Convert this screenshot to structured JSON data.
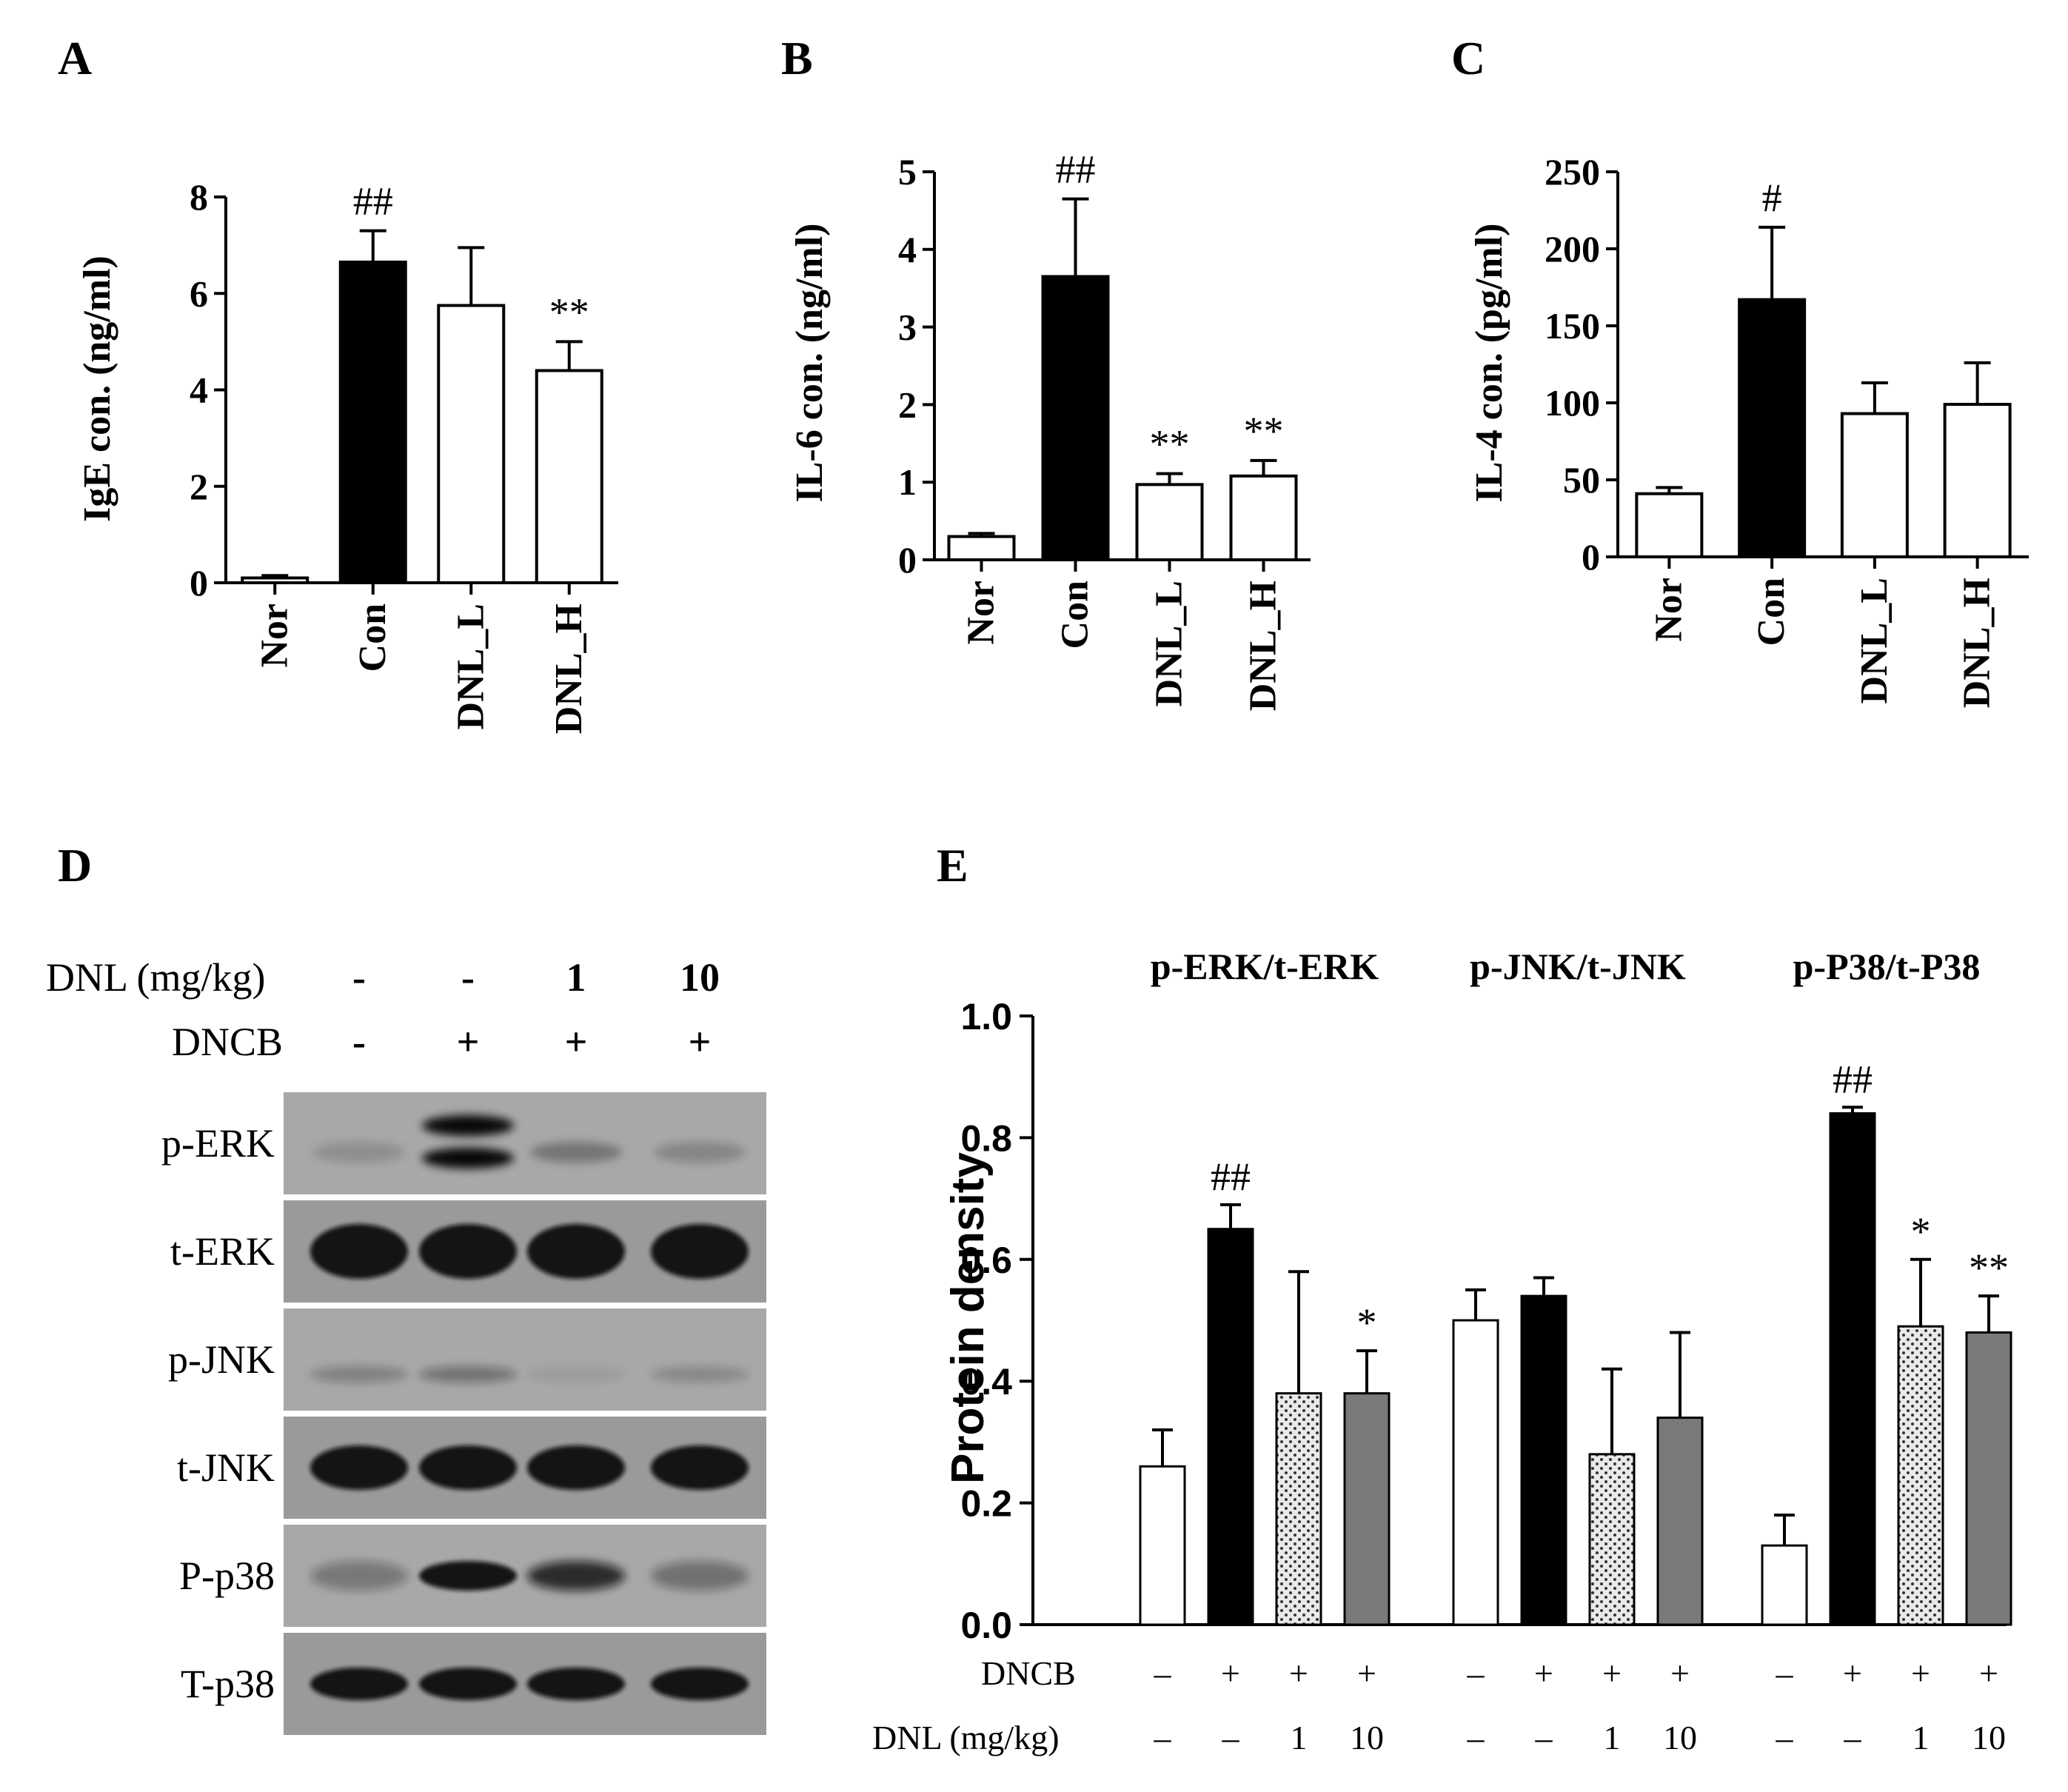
{
  "colors": {
    "black": "#000000",
    "white": "#ffffff",
    "gray": "#7a7a7a",
    "dotted": "#e6e6e6"
  },
  "panels": {
    "A": "A",
    "B": "B",
    "C": "C",
    "D": "D",
    "E": "E"
  },
  "chart_data": [
    {
      "panel": "A",
      "type": "bar",
      "ylabel": "IgE con. (ng/ml)",
      "categories": [
        "Nor",
        "Con",
        "DNL_L",
        "DNL_H"
      ],
      "values": [
        0.1,
        6.65,
        5.75,
        4.4
      ],
      "errors": [
        0.05,
        0.65,
        1.2,
        0.6
      ],
      "fills": [
        "white",
        "black",
        "white",
        "white"
      ],
      "sig": [
        "",
        "##",
        "",
        "**"
      ],
      "ylim": [
        0,
        8
      ],
      "yticks": [
        "0",
        "2",
        "4",
        "6",
        "8"
      ]
    },
    {
      "panel": "B",
      "type": "bar",
      "ylabel": "IL-6 con. (ng/ml)",
      "categories": [
        "Nor",
        "Con",
        "DNL_L",
        "DNL_H"
      ],
      "values": [
        0.3,
        3.65,
        0.97,
        1.08
      ],
      "errors": [
        0.04,
        1.0,
        0.14,
        0.2
      ],
      "fills": [
        "white",
        "black",
        "white",
        "white"
      ],
      "sig": [
        "",
        "##",
        "**",
        "**"
      ],
      "ylim": [
        0,
        5
      ],
      "yticks": [
        "0",
        "1",
        "2",
        "3",
        "4",
        "5"
      ]
    },
    {
      "panel": "C",
      "type": "bar",
      "ylabel": "IL-4 con. (pg/ml)",
      "categories": [
        "Nor",
        "Con",
        "DNL_L",
        "DNL_H"
      ],
      "values": [
        41,
        167,
        93,
        99
      ],
      "errors": [
        4,
        47,
        20,
        27
      ],
      "fills": [
        "white",
        "black",
        "white",
        "white"
      ],
      "sig": [
        "",
        "#",
        "",
        ""
      ],
      "ylim": [
        0,
        250
      ],
      "yticks": [
        "0",
        "50",
        "100",
        "150",
        "200",
        "250"
      ]
    },
    {
      "panel": "E",
      "type": "bar",
      "ylabel": "Protein density",
      "ylim": [
        0,
        1.0
      ],
      "yticks": [
        "0.0",
        "0.2",
        "0.4",
        "0.6",
        "0.8",
        "1.0"
      ],
      "fills": [
        "white",
        "black",
        "dotted",
        "gray"
      ],
      "series": [
        {
          "name": "p-ERK/t-ERK",
          "values": [
            0.26,
            0.65,
            0.38,
            0.38
          ],
          "errors": [
            0.06,
            0.04,
            0.2,
            0.07
          ],
          "sig": [
            "",
            "##",
            "",
            "*"
          ]
        },
        {
          "name": "p-JNK/t-JNK",
          "values": [
            0.5,
            0.54,
            0.28,
            0.34
          ],
          "errors": [
            0.05,
            0.03,
            0.14,
            0.14
          ],
          "sig": [
            "",
            "",
            "",
            ""
          ]
        },
        {
          "name": "p-P38/t-P38",
          "values": [
            0.13,
            0.84,
            0.49,
            0.48
          ],
          "errors": [
            0.05,
            0.01,
            0.11,
            0.06
          ],
          "sig": [
            "",
            "##",
            "*",
            "**"
          ]
        }
      ],
      "conditions": {
        "dncb_label": "DNCB",
        "dncb": [
          "–",
          "+",
          "+",
          "+"
        ],
        "dnl_label": "DNL (mg/kg)",
        "dnl": [
          "–",
          "–",
          "1",
          "10"
        ]
      }
    }
  ],
  "western_blot": {
    "dnl_label": "DNL (mg/kg)",
    "dnl": [
      "-",
      "-",
      "1",
      "10"
    ],
    "dncb_label": "DNCB",
    "dncb": [
      "-",
      "+",
      "+",
      "+"
    ],
    "rows": [
      "p-ERK",
      "t-ERK",
      "p-JNK",
      "t-JNK",
      "P-p38",
      "T-p38"
    ]
  }
}
